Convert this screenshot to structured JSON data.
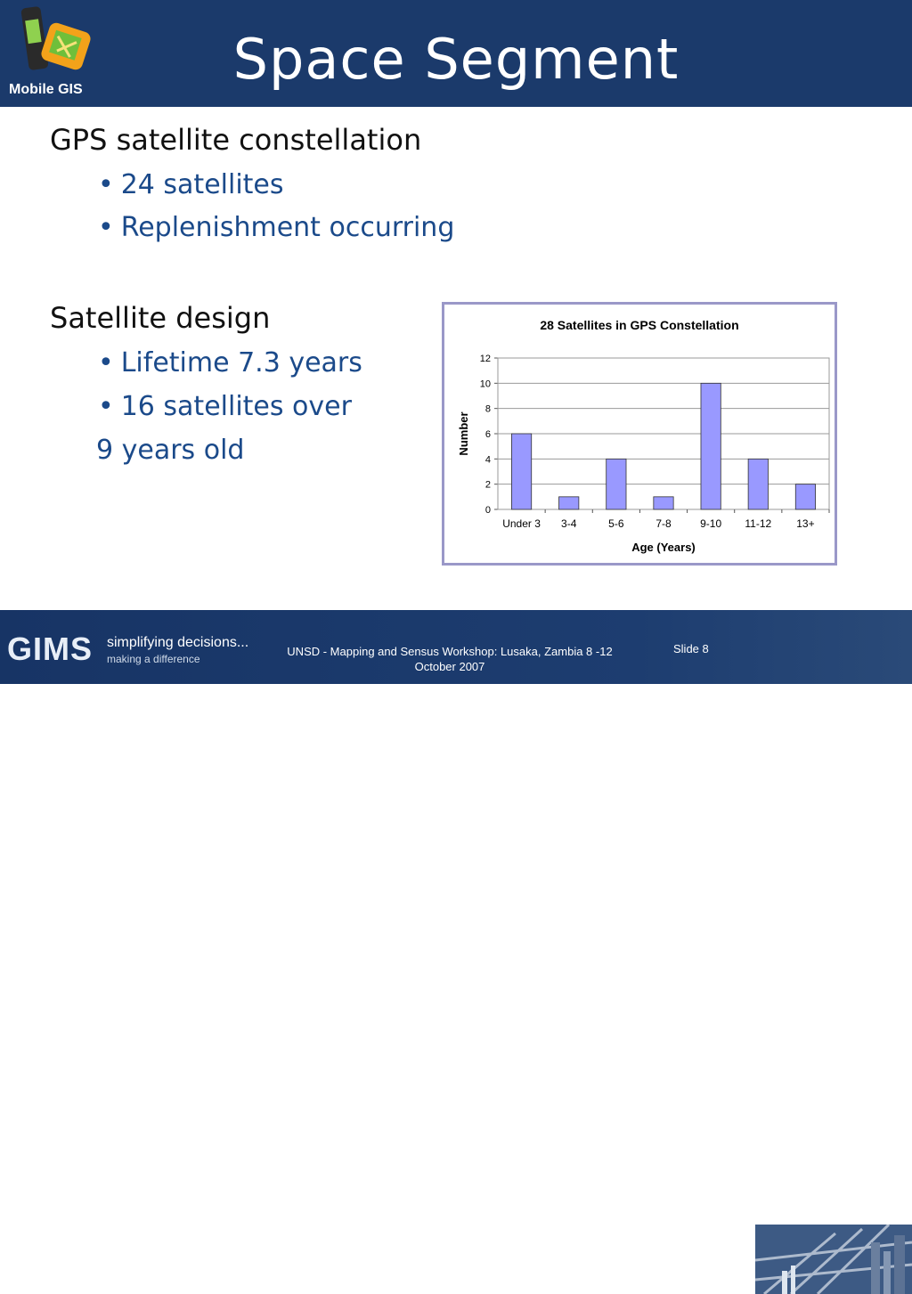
{
  "header": {
    "title": "Space Segment",
    "logo_label": "Mobile GIS"
  },
  "content": {
    "section1": {
      "heading": "GPS satellite constellation",
      "bullets": [
        "24 satellites",
        "Replenishment occurring"
      ]
    },
    "section2": {
      "heading": "Satellite design",
      "bullets": [
        "Lifetime 7.3 years",
        "16 satellites over"
      ],
      "continuation": "9 years old"
    }
  },
  "chart_data": {
    "type": "bar",
    "title": "28 Satellites in GPS Constellation",
    "xlabel": "Age (Years)",
    "ylabel": "Number",
    "categories": [
      "Under 3",
      "3-4",
      "5-6",
      "7-8",
      "9-10",
      "11-12",
      "13+"
    ],
    "values": [
      6,
      1,
      4,
      1,
      10,
      4,
      2
    ],
    "ylim": [
      0,
      12
    ],
    "yticks": [
      0,
      2,
      4,
      6,
      8,
      10,
      12
    ],
    "grid": true,
    "bar_color": "#9999ff",
    "legend": "none"
  },
  "footer": {
    "brand": "GIMS",
    "tagline1": "simplifying decisions...",
    "tagline2": "making a difference",
    "text": "UNSD - Mapping and Sensus Workshop: Lusaka, Zambia 8 -12 October 2007",
    "slide": "Slide 8"
  },
  "colors": {
    "header_bg": "#1b3a6b",
    "bullet_text": "#1b4a8a",
    "chart_border": "#9a98c8"
  }
}
